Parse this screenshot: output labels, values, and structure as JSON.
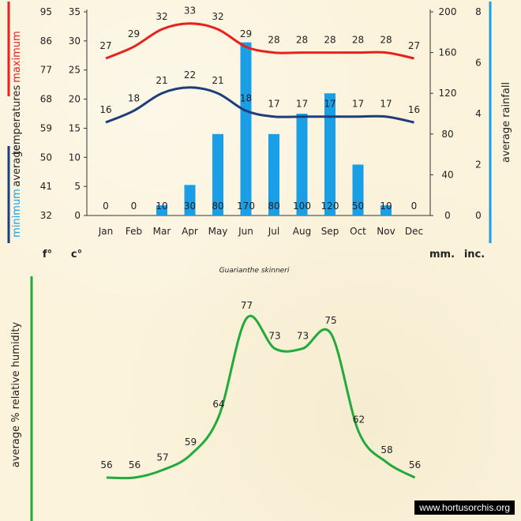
{
  "months": [
    "Jan",
    "Feb",
    "Mar",
    "Apr",
    "May",
    "Jun",
    "Jul",
    "Aug",
    "Sep",
    "Oct",
    "Nov",
    "Dec"
  ],
  "species": "Guarianthe skinneri",
  "watermark": "www.hortusorchis.org",
  "temp_chart": {
    "title_left_words": [
      "minimum",
      "average",
      "temperatures",
      "maximum"
    ],
    "f_ticks": [
      "32",
      "41",
      "50",
      "59",
      "68",
      "77",
      "86",
      "95"
    ],
    "c_ticks": [
      "0",
      "5",
      "10",
      "15",
      "20",
      "25",
      "30",
      "35"
    ],
    "mm_ticks": [
      "0",
      "40",
      "80",
      "120",
      "160",
      "200"
    ],
    "in_ticks": [
      "0",
      "2",
      "4",
      "6",
      "8"
    ],
    "unit_f": "f°",
    "unit_c": "c°",
    "unit_mm": "mm.",
    "unit_in": "inc.",
    "right_label": "average rainfall",
    "colors": {
      "max": "#e8211d",
      "min": "#1f3d7a",
      "bars": "#1a9fe6",
      "left_bar_max": "#e8211d",
      "left_bar_min": "#1f3d7a",
      "right_bar": "#1a9fe6"
    }
  },
  "chart_data": [
    {
      "type": "line",
      "title": "",
      "x": [
        "Jan",
        "Feb",
        "Mar",
        "Apr",
        "May",
        "Jun",
        "Jul",
        "Aug",
        "Sep",
        "Oct",
        "Nov",
        "Dec"
      ],
      "series": [
        {
          "name": "maximum",
          "values": [
            27,
            29,
            32,
            33,
            32,
            29,
            28,
            28,
            28,
            28,
            28,
            27
          ]
        },
        {
          "name": "minimum",
          "values": [
            16,
            18,
            21,
            22,
            21,
            18,
            17,
            17,
            17,
            17,
            17,
            16
          ]
        }
      ],
      "ylabel": "average temperatures",
      "ylim": [
        0,
        35
      ],
      "grid": false
    },
    {
      "type": "bar",
      "categories": [
        "Jan",
        "Feb",
        "Mar",
        "Apr",
        "May",
        "Jun",
        "Jul",
        "Aug",
        "Sep",
        "Oct",
        "Nov",
        "Dec"
      ],
      "values": [
        0,
        0,
        10,
        30,
        80,
        170,
        80,
        100,
        120,
        50,
        10,
        0
      ],
      "ylabel": "average rainfall",
      "ylim": [
        0,
        200
      ]
    },
    {
      "type": "line",
      "x": [
        "Jan",
        "Feb",
        "Mar",
        "Apr",
        "May",
        "Jun",
        "Jul",
        "Aug",
        "Sep",
        "Oct",
        "Nov",
        "Dec"
      ],
      "series": [
        {
          "values": [
            56,
            56,
            57,
            59,
            64,
            77,
            73,
            73,
            75,
            62,
            58,
            56
          ]
        }
      ],
      "ylabel": "average % relative humidity",
      "grid": false,
      "color": "#22aa3c"
    }
  ]
}
